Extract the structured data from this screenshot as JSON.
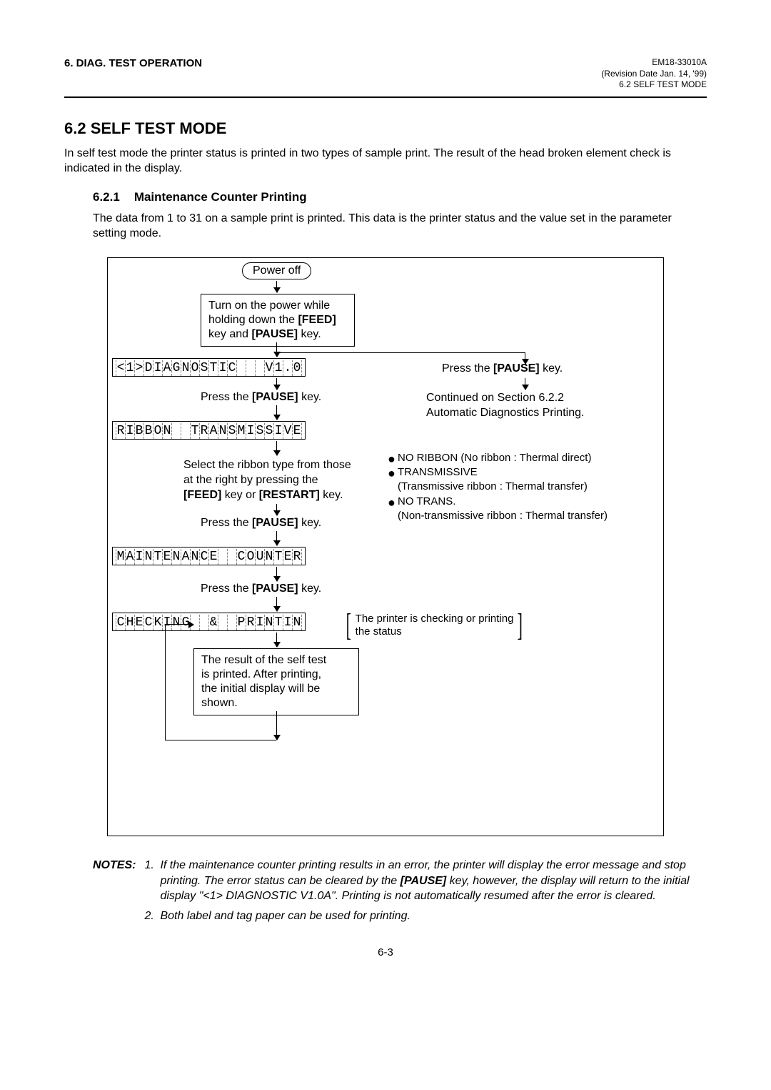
{
  "header": {
    "left": "6. DIAG. TEST OPERATION",
    "right1": "EM18-33010A",
    "right2": "(Revision Date Jan. 14, '99)",
    "right3": "6.2 SELF TEST MODE"
  },
  "section": {
    "title": "6.2  SELF TEST MODE",
    "intro": "In self test mode the printer status is printed in two types of sample print.  The result of the head broken element check is indicated in the display.",
    "sub_num": "6.2.1",
    "sub_title": "Maintenance Counter Printing",
    "sub_body_a": "The data from ",
    "sub_body_1": "1",
    "sub_body_b": " to ",
    "sub_body_31": "31",
    "sub_body_c": " on a sample print is printed.  This data is the printer status and the value set in the parameter setting mode."
  },
  "flow": {
    "power_off": "Power off",
    "turn_on_a": "Turn on the power while",
    "turn_on_b": "holding down the ",
    "turn_on_feed": "[FEED]",
    "turn_on_c": "key and ",
    "turn_on_pause": "[PAUSE]",
    "turn_on_d": " key.",
    "lcd1": "<1>DIAGNOSTIC   V1.0A",
    "press_pause": "Press the ",
    "pause_key": "[PAUSE]",
    "key_word": " key.",
    "continued1": "Continued on Section 6.2.2",
    "continued2": "Automatic Diagnostics Printing.",
    "lcd2": "RIBBON  TRANSMISSIVE",
    "select_a": "Select the ribbon type from those",
    "select_b": "at the right by pressing the",
    "select_c1": "[FEED]",
    "select_c2": " key or ",
    "select_c3": "[RESTART]",
    "select_c4": " key.",
    "bullet1a": "NO RIBBON (No ribbon : Thermal direct)",
    "bullet2a": "TRANSMISSIVE",
    "bullet2b": "(Transmissive ribbon : Thermal transfer)",
    "bullet3a": "NO TRANS.",
    "bullet3b": "(Non-transmissive ribbon : Thermal transfer)",
    "lcd3": "MAINTENANCE  COUNTER",
    "lcd4": "CHECKING  &  PRINTING",
    "bracket1": "The printer is checking or printing",
    "bracket2": "the status",
    "result1": "The result of the self test",
    "result2": "is printed.   After printing,",
    "result3": "the initial display will be",
    "result4": "shown."
  },
  "notes": {
    "label": "NOTES:",
    "n1": "1.",
    "t1a": "If the maintenance counter printing results in an error, the printer will display the error message  and stop printing.  The error status can be cleared by the ",
    "t1b": "[PAUSE]",
    "t1c": " key, however, the display will return to the initial display \"<1> DIAGNOSTIC V1.0A\". Printing is not automatically resumed after the error is cleared.",
    "n2": "2.",
    "t2": "Both label and tag paper can be used for printing."
  },
  "page": "6-3"
}
